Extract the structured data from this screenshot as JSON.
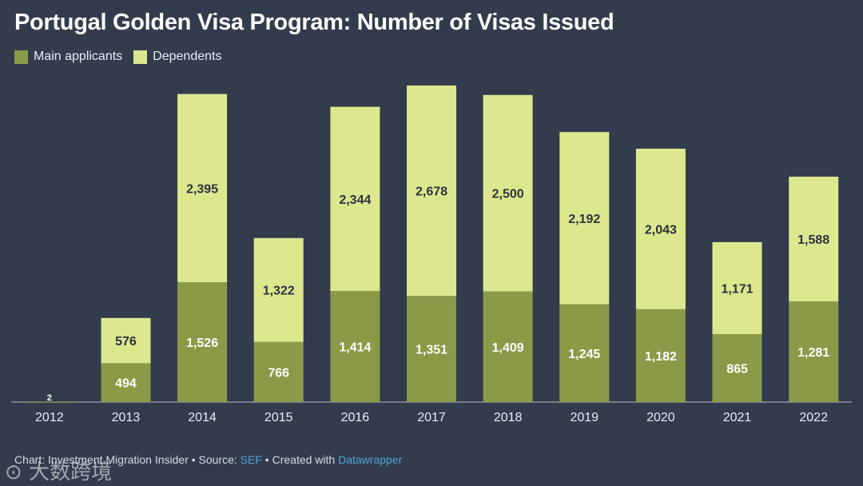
{
  "colors": {
    "background": "#323c4d",
    "main": "#8b9a47",
    "dependents": "#dde78e",
    "axis": "#b8bec8",
    "link": "#4fa3d8"
  },
  "header": {
    "title": "Portugal Golden Visa Program: Number of Visas Issued"
  },
  "legend": {
    "main_label": "Main applicants",
    "dependents_label": "Dependents"
  },
  "footer": {
    "prefix": "Chart: Investment Migration Insider • Source: ",
    "source": "SEF",
    "middle": " • Created with ",
    "tool": "Datawrapper"
  },
  "watermark": {
    "text": "大数跨境"
  },
  "chart_data": {
    "type": "bar",
    "stacked": true,
    "title": "Portugal Golden Visa Program: Number of Visas Issued",
    "xlabel": "",
    "ylabel": "",
    "ylim": [
      0,
      4100
    ],
    "grid": false,
    "legend_position": "top-left",
    "categories": [
      "2012",
      "2013",
      "2014",
      "2015",
      "2016",
      "2017",
      "2018",
      "2019",
      "2020",
      "2021",
      "2022"
    ],
    "series": [
      {
        "name": "Main applicants",
        "values": [
          2,
          494,
          1526,
          766,
          1414,
          1351,
          1409,
          1245,
          1182,
          865,
          1281
        ]
      },
      {
        "name": "Dependents",
        "values": [
          0,
          576,
          2395,
          1322,
          2344,
          2678,
          2500,
          2192,
          2043,
          1171,
          1588
        ]
      }
    ],
    "value_labels": {
      "Main applicants": [
        "2",
        "494",
        "1,526",
        "766",
        "1,414",
        "1,351",
        "1,409",
        "1,245",
        "1,182",
        "865",
        "1,281"
      ],
      "Dependents": [
        "",
        "576",
        "2,395",
        "1,322",
        "2,344",
        "2,678",
        "2,500",
        "2,192",
        "2,043",
        "1,171",
        "1,588"
      ]
    }
  }
}
